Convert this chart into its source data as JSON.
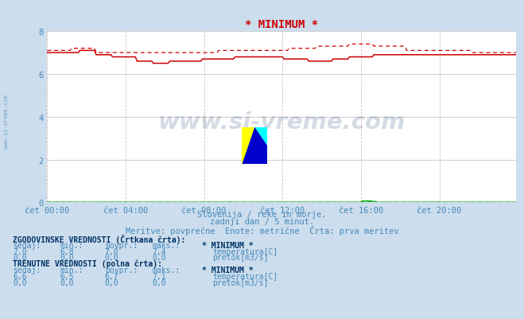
{
  "title": "* MINIMUM *",
  "bg_color": "#ccdded",
  "plot_bg_color": "#ffffff",
  "grid_color_h": "#bbbbbb",
  "grid_color_v": "#ddbbbb",
  "x_labels": [
    "čet 00:00",
    "čet 04:00",
    "čet 08:00",
    "čet 12:00",
    "čet 16:00",
    "čet 20:00"
  ],
  "x_ticks": [
    0,
    48,
    96,
    144,
    192,
    240
  ],
  "x_max": 287,
  "y_min": 0,
  "y_max": 8,
  "y_ticks": [
    0,
    2,
    4,
    6,
    8
  ],
  "subtitle1": "Slovenija / reke in morje.",
  "subtitle2": "zadnji dan / 5 minut.",
  "subtitle3": "Meritve: povprečne  Enote: metrične  Črta: prva meritev",
  "watermark": "www.si-vreme.com",
  "watermark_color": "#1a3a6a",
  "watermark_alpha": 0.18,
  "table_title1": "ZGODOVINSKE VREDNOSTI (Črtkana črta):",
  "table_col_headers": [
    "sedaj:",
    "min.:",
    "povpr.:",
    "maks.:",
    "* MINIMUM *"
  ],
  "hist_temp_vals": [
    "7,0",
    "6,8",
    "7,0",
    "7,4"
  ],
  "hist_flow_vals": [
    "0,0",
    "0,0",
    "0,0",
    "0,0"
  ],
  "curr_title": "TRENUTNE VREDNOSTI (polna črta):",
  "curr_col_headers": [
    "sedaj:",
    "min.:",
    "povpr.:",
    "maks.:",
    "* MINIMUM *"
  ],
  "curr_temp_vals": [
    "6,6",
    "6,5",
    "6,7",
    "7,1"
  ],
  "curr_flow_vals": [
    "0,0",
    "0,0",
    "0,0",
    "0,0"
  ],
  "temp_label": "temperatura[C]",
  "flow_label": "pretok[m3/s]",
  "temp_color": "#cc0000",
  "flow_color": "#00aa00",
  "text_color": "#4488bb",
  "bold_color": "#003366",
  "title_color": "#cc0000",
  "sidebar_text": "www.si-vreme.com"
}
